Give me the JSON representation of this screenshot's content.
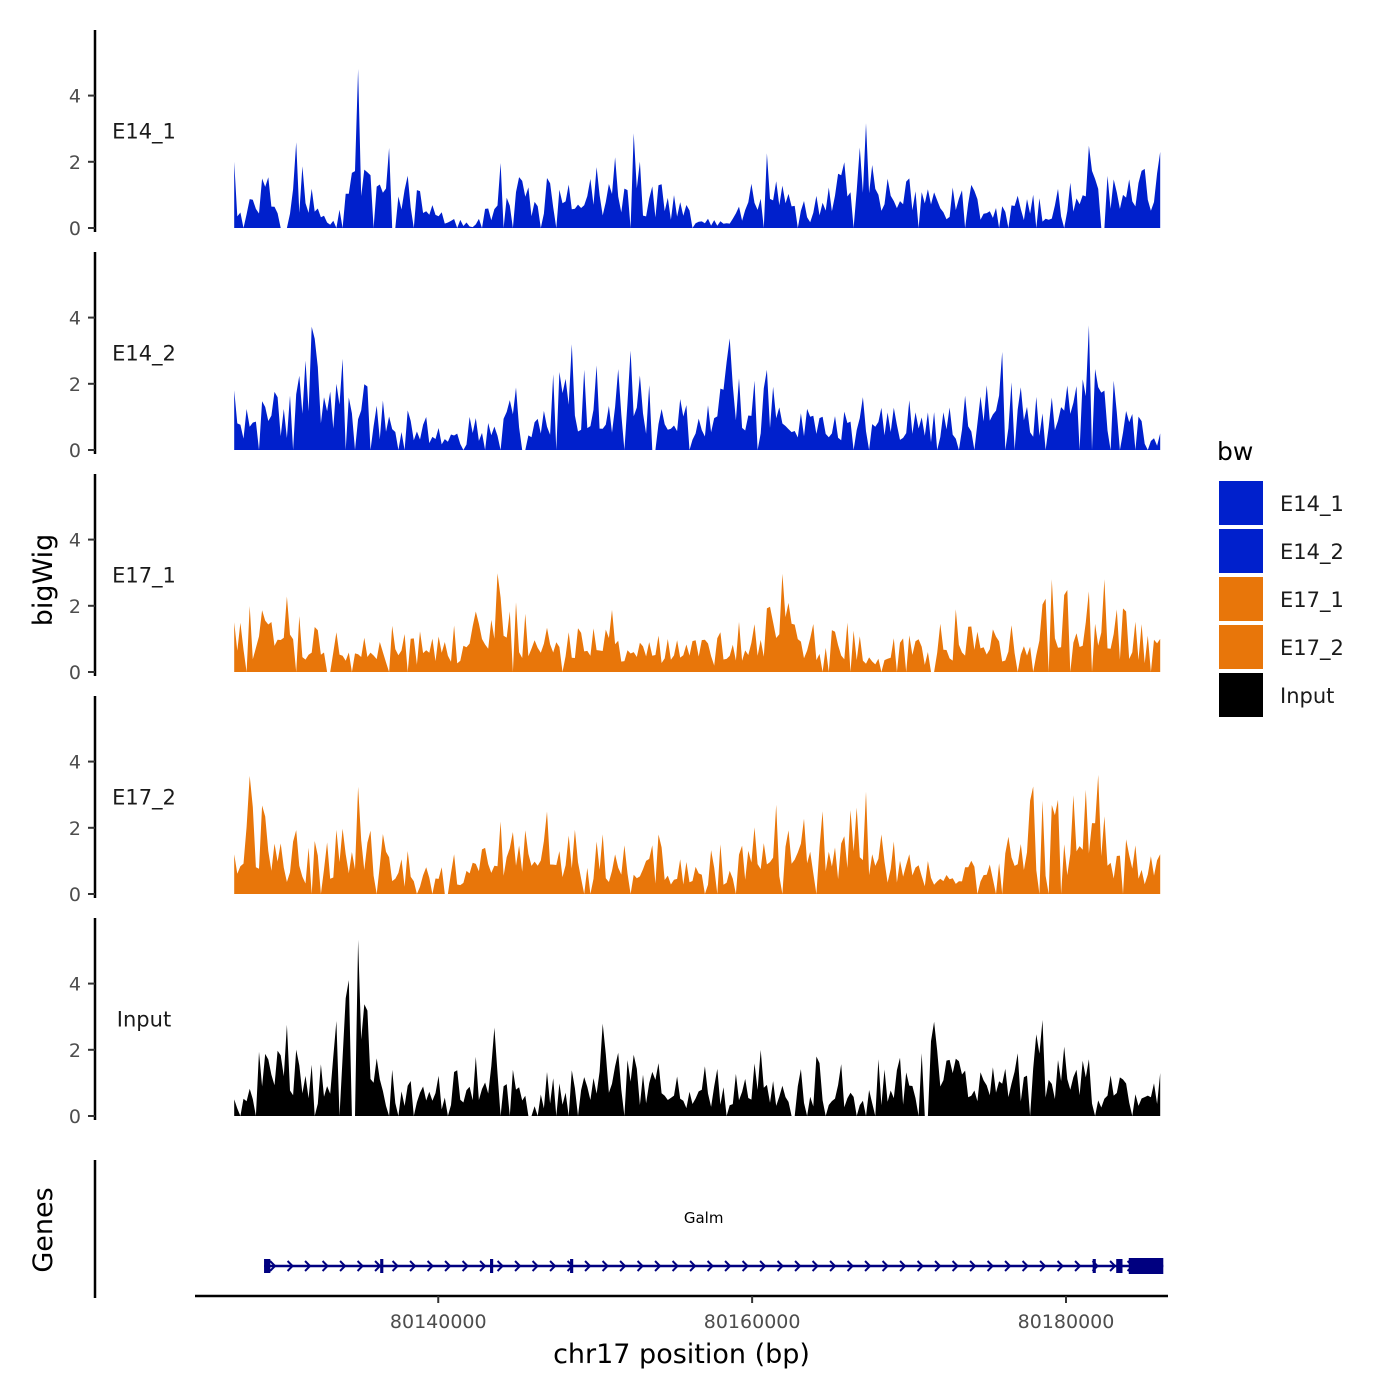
{
  "chart_data": {
    "type": "area",
    "chromosome": "chr17",
    "xlabel": "chr17 position (bp)",
    "ylabel": "bigWig",
    "gene_track_label": "Genes",
    "xlim": [
      80124500,
      80186500
    ],
    "x_ticks": [
      80140000,
      80160000,
      80180000
    ],
    "x_tick_labels": [
      "80140000",
      "80160000",
      "80180000"
    ],
    "ylim": [
      0,
      5.8
    ],
    "y_ticks": [
      0,
      2,
      4
    ],
    "y_tick_labels": [
      "0",
      "2",
      "4"
    ],
    "grid": false,
    "legend": {
      "title": "bw",
      "position": "right",
      "entries": [
        {
          "label": "E14_1",
          "color": "#0020cc"
        },
        {
          "label": "E14_2",
          "color": "#0020cc"
        },
        {
          "label": "E17_1",
          "color": "#e8760a"
        },
        {
          "label": "E17_2",
          "color": "#e8760a"
        },
        {
          "label": "Input",
          "color": "#000000"
        }
      ]
    },
    "series_range": [
      80127000,
      80186000
    ],
    "series": [
      {
        "name": "E14_1",
        "color": "#0020cc",
        "x": [
          80127000,
          80131000,
          80133200,
          80134800,
          80138000,
          80142300,
          80144000,
          80147000,
          80150000,
          80152400,
          80155000,
          80158000,
          80161000,
          80164000,
          80167200,
          80170000,
          80174000,
          80178000,
          80181500,
          80186000
        ],
        "values": [
          2.0,
          2.6,
          0.0,
          4.9,
          1.6,
          0.0,
          2.0,
          1.5,
          1.8,
          2.9,
          1.0,
          0.2,
          2.3,
          0.9,
          3.2,
          1.5,
          1.3,
          1.0,
          2.5,
          2.3
        ]
      },
      {
        "name": "E14_2",
        "color": "#0020cc",
        "x": [
          80127000,
          80131500,
          80132000,
          80134000,
          80138000,
          80142000,
          80145000,
          80148500,
          80152300,
          80155500,
          80158500,
          80161000,
          80164500,
          80167000,
          80170000,
          80173500,
          80176000,
          80179000,
          80181500,
          80186000
        ],
        "values": [
          1.8,
          2.6,
          3.9,
          2.7,
          1.2,
          1.0,
          1.9,
          3.2,
          3.0,
          1.5,
          3.4,
          2.4,
          1.0,
          1.6,
          1.5,
          1.6,
          3.0,
          1.5,
          3.8,
          0.5
        ]
      },
      {
        "name": "E17_1",
        "color": "#e8760a",
        "x": [
          80127000,
          80128000,
          80130300,
          80133500,
          80137000,
          80141000,
          80143800,
          80147000,
          80151000,
          80154000,
          80158000,
          80162000,
          80166000,
          80170000,
          80173000,
          80176500,
          80179000,
          80182500,
          80186000
        ],
        "values": [
          1.5,
          2.0,
          2.3,
          1.2,
          1.4,
          1.4,
          3.0,
          1.3,
          1.9,
          1.1,
          1.2,
          3.0,
          1.5,
          1.1,
          1.9,
          1.4,
          2.8,
          2.8,
          1.0
        ]
      },
      {
        "name": "E17_2",
        "color": "#e8760a",
        "x": [
          80127000,
          80128000,
          80131000,
          80134800,
          80138000,
          80141000,
          80144000,
          80147000,
          80150500,
          80154000,
          80158000,
          80161500,
          80164500,
          80167300,
          80170000,
          80174000,
          80178000,
          80182100,
          80186000
        ],
        "values": [
          1.2,
          3.6,
          1.9,
          3.3,
          1.3,
          1.2,
          2.2,
          2.5,
          1.8,
          1.8,
          1.5,
          2.7,
          2.5,
          3.1,
          1.2,
          1.0,
          3.3,
          3.6,
          1.2
        ]
      },
      {
        "name": "Input",
        "color": "#000000",
        "x": [
          80127000,
          80128500,
          80130300,
          80132000,
          80134800,
          80137000,
          80140000,
          80143500,
          80147000,
          80150500,
          80154000,
          80157000,
          80160500,
          80164000,
          80168000,
          80171500,
          80174500,
          80178500,
          80181500,
          80186000
        ],
        "values": [
          0.5,
          1.9,
          2.8,
          1.5,
          5.5,
          1.4,
          1.2,
          2.7,
          1.3,
          2.8,
          1.6,
          1.5,
          2.0,
          1.8,
          1.7,
          2.9,
          1.3,
          2.9,
          1.7,
          1.3
        ]
      }
    ],
    "gene": {
      "name": "Galm",
      "strand": "+",
      "start": 80128900,
      "end": 80186200,
      "color": "#000080",
      "exons": [
        {
          "start": 80128900,
          "end": 80129300
        },
        {
          "start": 80136300,
          "end": 80136500
        },
        {
          "start": 80143300,
          "end": 80143500
        },
        {
          "start": 80148400,
          "end": 80148600
        },
        {
          "start": 80181700,
          "end": 80181900
        },
        {
          "start": 80183200,
          "end": 80183600
        },
        {
          "start": 80184000,
          "end": 80186200
        }
      ]
    }
  }
}
